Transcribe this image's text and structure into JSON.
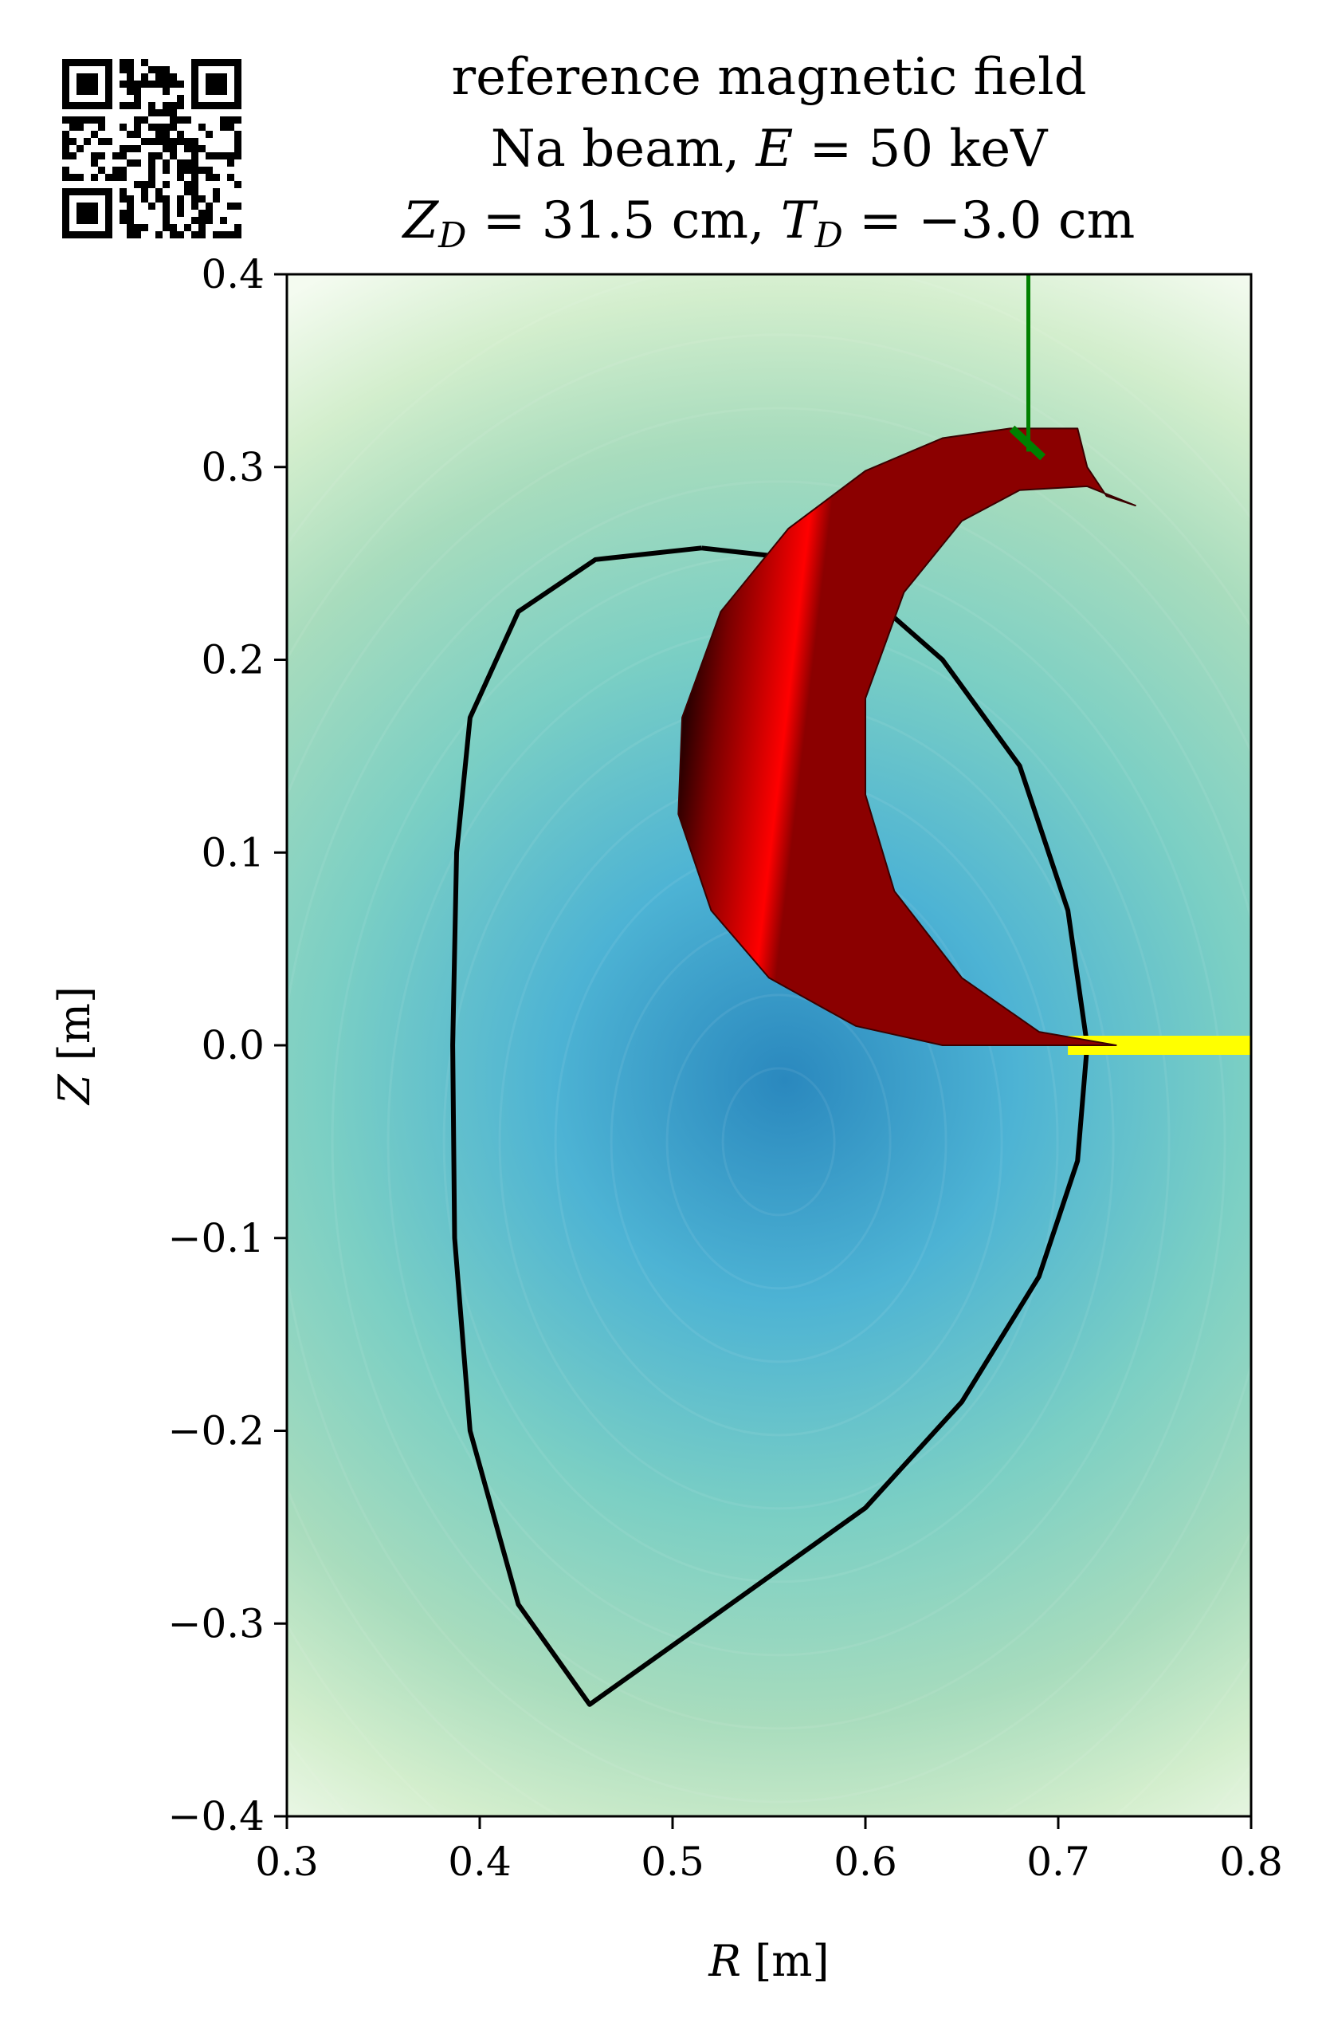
{
  "chart_data": {
    "type": "contour",
    "title_lines": [
      "reference magnetic field",
      "Na beam, E = 50 keV",
      "Z_D = 31.5 cm, T_D = −3.0 cm"
    ],
    "xlabel": "R [m]",
    "ylabel": "Z [m]",
    "xlim": [
      0.3,
      0.8
    ],
    "ylim": [
      -0.4,
      0.4
    ],
    "xticks": [
      "0.3",
      "0.4",
      "0.5",
      "0.6",
      "0.7",
      "0.8"
    ],
    "yticks": [
      "0.4",
      "0.3",
      "0.2",
      "0.1",
      "0.0",
      "−0.1",
      "−0.2",
      "−0.3",
      "−0.4"
    ],
    "grid": false,
    "colormap": [
      "#2a88be",
      "#4db3d4",
      "#7bcfc4",
      "#a8dcbd",
      "#d3eecd",
      "#f4fbf0"
    ],
    "field_center": {
      "R": 0.555,
      "Z": -0.05
    },
    "separatrix": [
      [
        0.515,
        0.258
      ],
      [
        0.56,
        0.253
      ],
      [
        0.6,
        0.235
      ],
      [
        0.64,
        0.2
      ],
      [
        0.68,
        0.145
      ],
      [
        0.705,
        0.07
      ],
      [
        0.715,
        0.0
      ],
      [
        0.71,
        -0.06
      ],
      [
        0.69,
        -0.12
      ],
      [
        0.65,
        -0.185
      ],
      [
        0.6,
        -0.24
      ],
      [
        0.53,
        -0.29
      ],
      [
        0.457,
        -0.342
      ],
      [
        0.42,
        -0.29
      ],
      [
        0.395,
        -0.2
      ],
      [
        0.387,
        -0.1
      ],
      [
        0.386,
        0.0
      ],
      [
        0.388,
        0.1
      ],
      [
        0.395,
        0.17
      ],
      [
        0.42,
        0.225
      ],
      [
        0.46,
        0.252
      ],
      [
        0.515,
        0.258
      ]
    ],
    "beam_fan": {
      "outer": [
        [
          0.73,
          0.0
        ],
        [
          0.68,
          0.0
        ],
        [
          0.64,
          0.0
        ],
        [
          0.595,
          0.01
        ],
        [
          0.55,
          0.035
        ],
        [
          0.52,
          0.07
        ],
        [
          0.503,
          0.12
        ],
        [
          0.505,
          0.17
        ],
        [
          0.525,
          0.225
        ],
        [
          0.56,
          0.268
        ],
        [
          0.6,
          0.298
        ],
        [
          0.64,
          0.315
        ],
        [
          0.675,
          0.32
        ]
      ],
      "inner": [
        [
          0.71,
          0.32
        ],
        [
          0.715,
          0.3
        ],
        [
          0.725,
          0.285
        ],
        [
          0.74,
          0.28
        ],
        [
          0.715,
          0.29
        ],
        [
          0.68,
          0.288
        ],
        [
          0.65,
          0.272
        ],
        [
          0.62,
          0.235
        ],
        [
          0.6,
          0.18
        ],
        [
          0.6,
          0.13
        ],
        [
          0.615,
          0.08
        ],
        [
          0.65,
          0.035
        ],
        [
          0.69,
          0.007
        ],
        [
          0.73,
          0.0
        ]
      ],
      "colors": [
        "#000000",
        "#ff0000"
      ]
    },
    "primary_beam": {
      "R": [
        0.705,
        0.8
      ],
      "Z": 0.0,
      "color": "#ffff00"
    },
    "detector": {
      "line": [
        [
          0.6845,
          0.4
        ],
        [
          0.6845,
          0.308
        ]
      ],
      "slit": [
        [
          0.676,
          0.32
        ],
        [
          0.692,
          0.305
        ]
      ],
      "color": "#008000"
    }
  }
}
